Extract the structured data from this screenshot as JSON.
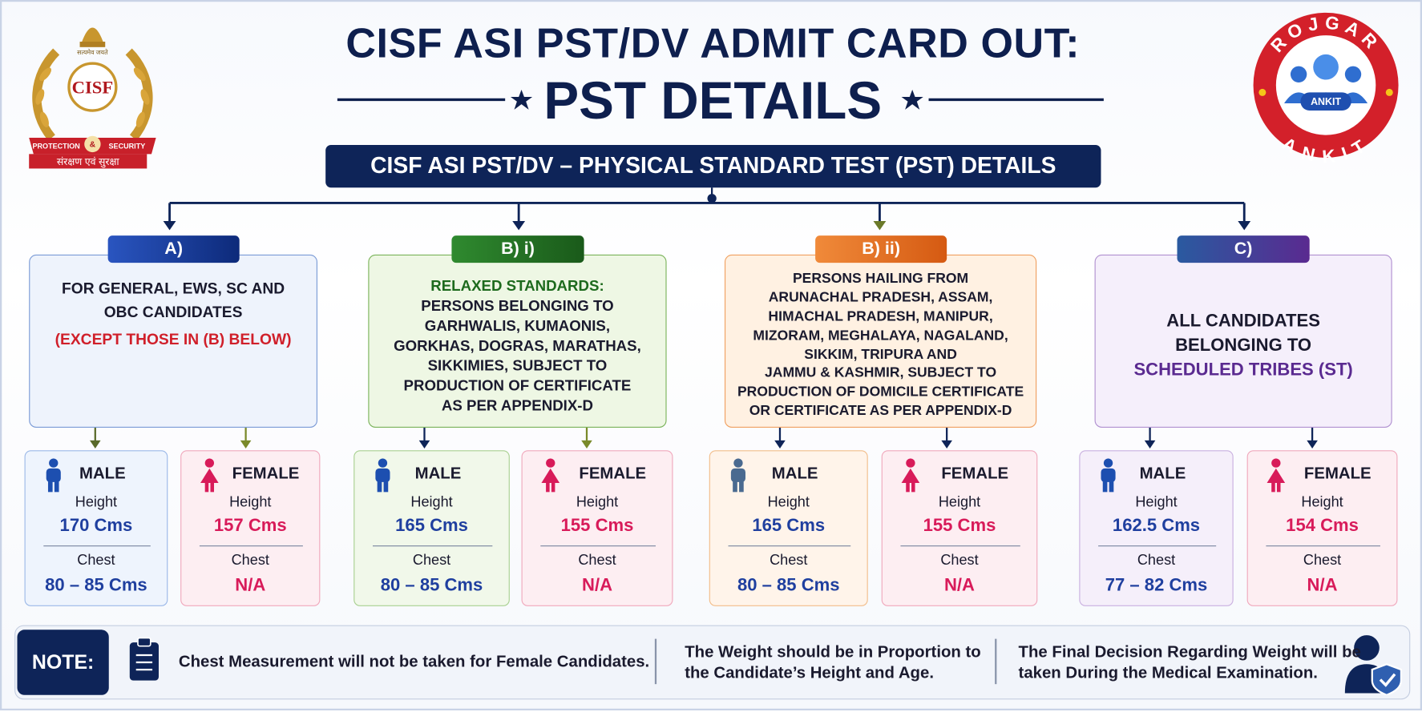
{
  "header": {
    "title_line1": "CISF ASI PST/DV ADMIT CARD OUT:",
    "title_line2": "PST DETAILS",
    "subtitle": "CISF ASI PST/DV – PHYSICAL STANDARD TEST (PST) DETAILS"
  },
  "logo_left": {
    "emblem_motto": "सत्यमेव जयते",
    "name": "CISF",
    "ribbon_left": "PROTECTION",
    "ribbon_mid": "&",
    "ribbon_right": "SECURITY",
    "hindi_motto": "संरक्षण एवं सुरक्षा"
  },
  "logo_right": {
    "ring_top": "ROJGAR",
    "ring_bottom": "ANKIT",
    "badge": "ANKIT"
  },
  "groups": [
    {
      "label": "A)",
      "lines": [
        "FOR GENERAL, EWS, SC AND",
        "OBC CANDIDATES"
      ],
      "highlight": "(EXCEPT THOSE IN (B) BELOW)",
      "cards": [
        {
          "gender": "MALE",
          "height_label": "Height",
          "height": "170 Cms",
          "chest_label": "Chest",
          "chest": "80 – 85 Cms"
        },
        {
          "gender": "FEMALE",
          "height_label": "Height",
          "height": "157 Cms",
          "chest_label": "Chest",
          "chest": "N/A"
        }
      ]
    },
    {
      "label": "B) i)",
      "heading": "RELAXED STANDARDS:",
      "lines": [
        "PERSONS BELONGING TO",
        "GARHWALIS, KUMAONIS,",
        "GORKHAS, DOGRAS, MARATHAS,",
        "SIKKIMIES, SUBJECT TO",
        "PRODUCTION OF CERTIFICATE",
        "AS PER APPENDIX-D"
      ],
      "cards": [
        {
          "gender": "MALE",
          "height_label": "Height",
          "height": "165 Cms",
          "chest_label": "Chest",
          "chest": "80 – 85 Cms"
        },
        {
          "gender": "FEMALE",
          "height_label": "Height",
          "height": "155 Cms",
          "chest_label": "Chest",
          "chest": "N/A"
        }
      ]
    },
    {
      "label": "B) ii)",
      "lines": [
        "PERSONS HAILING FROM",
        "ARUNACHAL PRADESH, ASSAM,",
        "HIMACHAL PRADESH, MANIPUR,",
        "MIZORAM, MEGHALAYA, NAGALAND,",
        "SIKKIM, TRIPURA AND",
        "JAMMU & KASHMIR, SUBJECT TO",
        "PRODUCTION OF DOMICILE CERTIFICATE",
        "OR CERTIFICATE AS PER APPENDIX-D"
      ],
      "cards": [
        {
          "gender": "MALE",
          "height_label": "Height",
          "height": "165 Cms",
          "chest_label": "Chest",
          "chest": "80 – 85 Cms"
        },
        {
          "gender": "FEMALE",
          "height_label": "Height",
          "height": "155 Cms",
          "chest_label": "Chest",
          "chest": "N/A"
        }
      ]
    },
    {
      "label": "C)",
      "lines": [
        "ALL CANDIDATES",
        "BELONGING TO"
      ],
      "highlight": "SCHEDULED TRIBES (ST)",
      "cards": [
        {
          "gender": "MALE",
          "height_label": "Height",
          "height": "162.5 Cms",
          "chest_label": "Chest",
          "chest": "77 – 82 Cms"
        },
        {
          "gender": "FEMALE",
          "height_label": "Height",
          "height": "154 Cms",
          "chest_label": "Chest",
          "chest": "N/A"
        }
      ]
    }
  ],
  "note": {
    "label": "NOTE:",
    "items": [
      [
        "Chest Measurement will not be taken for Female Candidates."
      ],
      [
        "The Weight should be in Proportion to",
        "the Candidate’s Height and Age."
      ],
      [
        "The Final Decision Regarding Weight will be",
        "taken During the Medical Examination."
      ]
    ]
  }
}
